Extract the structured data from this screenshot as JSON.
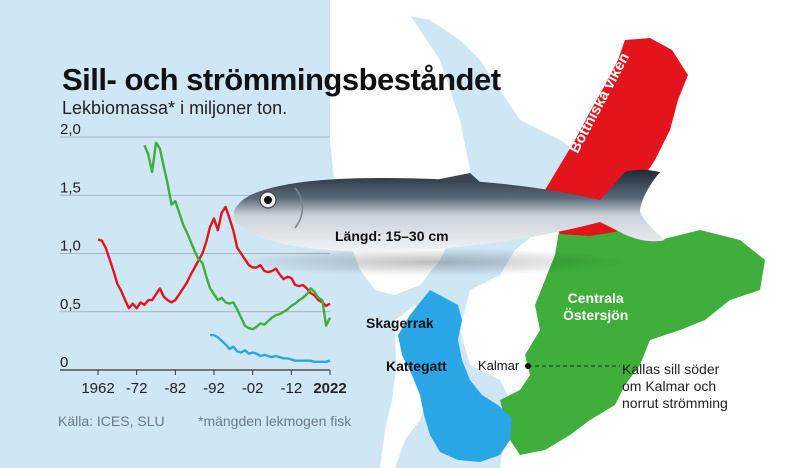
{
  "title": "Sill- och strömmingsbeståndet",
  "subtitle": "Lekbiomassa* i miljoner ton.",
  "source": "Källa: ICES, SLU",
  "footnote": "*mängden lekmogen fisk",
  "fish_label": "Längd: 15–30 cm",
  "map": {
    "bothnian_label": "Bottniska viken",
    "central_label": [
      "Centrala",
      "Östersjön"
    ],
    "skagerrak_label": "Skagerrak",
    "kattegatt_label": "Kattegatt",
    "kalmar_label": "Kalmar",
    "note_lines": [
      "Kallas sill söder",
      "om Kalmar och",
      "norrut strömming"
    ]
  },
  "colors": {
    "skagerrak_kattegatt": "#2aa6e6",
    "central_baltic": "#3fae3a",
    "bothnian_bay": "#e3141b",
    "land": "#ffffff",
    "sea": "#cfe6f5"
  },
  "chart_data": {
    "type": "line",
    "title": "Sill- och strömmingsbeståndet",
    "ylabel": "Lekbiomassa* i miljoner ton.",
    "xlabel": "",
    "xlim": [
      1962,
      2022
    ],
    "ylim": [
      0,
      2.0
    ],
    "y_ticks": [
      0,
      0.5,
      1.0,
      1.5,
      2.0
    ],
    "y_tick_labels": [
      "0",
      "0,5",
      "1,0",
      "1,5",
      "2,0"
    ],
    "x_ticks": [
      1962,
      1972,
      1982,
      1992,
      2002,
      2012,
      2022
    ],
    "x_tick_labels": [
      "1962",
      "-72",
      "-82",
      "-92",
      "-02",
      "-12",
      "2022"
    ],
    "grid": true,
    "series": [
      {
        "name": "Bottniska viken",
        "color": "#e3141b",
        "x": [
          1962,
          1963,
          1964,
          1965,
          1966,
          1967,
          1968,
          1969,
          1970,
          1971,
          1972,
          1973,
          1974,
          1975,
          1976,
          1977,
          1978,
          1979,
          1980,
          1981,
          1982,
          1983,
          1984,
          1985,
          1986,
          1987,
          1988,
          1989,
          1990,
          1991,
          1992,
          1993,
          1994,
          1995,
          1996,
          1997,
          1998,
          1999,
          2000,
          2001,
          2002,
          2003,
          2004,
          2005,
          2006,
          2007,
          2008,
          2009,
          2010,
          2011,
          2012,
          2013,
          2014,
          2015,
          2016,
          2017,
          2018,
          2019,
          2020,
          2021,
          2022
        ],
        "values": [
          1.12,
          1.11,
          1.05,
          0.95,
          0.85,
          0.74,
          0.68,
          0.6,
          0.53,
          0.57,
          0.53,
          0.58,
          0.56,
          0.6,
          0.6,
          0.65,
          0.7,
          0.63,
          0.6,
          0.58,
          0.6,
          0.65,
          0.7,
          0.75,
          0.82,
          0.88,
          0.94,
          1.0,
          1.1,
          1.23,
          1.3,
          1.2,
          1.35,
          1.4,
          1.3,
          1.2,
          1.05,
          1.0,
          0.95,
          0.9,
          0.88,
          0.88,
          0.9,
          0.85,
          0.84,
          0.85,
          0.87,
          0.82,
          0.78,
          0.8,
          0.79,
          0.73,
          0.72,
          0.73,
          0.7,
          0.66,
          0.64,
          0.6,
          0.58,
          0.55,
          0.57
        ]
      },
      {
        "name": "Centrala Östersjön",
        "color": "#3fae3a",
        "x": [
          1974,
          1975,
          1976,
          1977,
          1978,
          1979,
          1980,
          1981,
          1982,
          1983,
          1984,
          1985,
          1986,
          1987,
          1988,
          1989,
          1990,
          1991,
          1992,
          1993,
          1994,
          1995,
          1996,
          1997,
          1998,
          1999,
          2000,
          2001,
          2002,
          2003,
          2004,
          2005,
          2006,
          2007,
          2008,
          2009,
          2010,
          2011,
          2012,
          2013,
          2014,
          2015,
          2016,
          2017,
          2018,
          2019,
          2020,
          2021,
          2022
        ],
        "values": [
          1.93,
          1.85,
          1.7,
          1.95,
          1.9,
          1.75,
          1.6,
          1.42,
          1.45,
          1.35,
          1.25,
          1.18,
          1.1,
          1.02,
          0.95,
          0.92,
          0.8,
          0.7,
          0.65,
          0.6,
          0.62,
          0.58,
          0.57,
          0.58,
          0.52,
          0.45,
          0.38,
          0.36,
          0.35,
          0.37,
          0.4,
          0.39,
          0.42,
          0.45,
          0.47,
          0.48,
          0.5,
          0.52,
          0.55,
          0.57,
          0.6,
          0.62,
          0.65,
          0.7,
          0.67,
          0.62,
          0.6,
          0.38,
          0.45
        ]
      },
      {
        "name": "Skagerrak och Kattegatt",
        "color": "#2aa6e6",
        "x": [
          1991,
          1992,
          1993,
          1994,
          1995,
          1996,
          1997,
          1998,
          1999,
          2000,
          2001,
          2002,
          2003,
          2004,
          2005,
          2006,
          2007,
          2008,
          2009,
          2010,
          2011,
          2012,
          2013,
          2014,
          2015,
          2016,
          2017,
          2018,
          2019,
          2020,
          2021,
          2022
        ],
        "values": [
          0.3,
          0.3,
          0.28,
          0.25,
          0.22,
          0.18,
          0.2,
          0.16,
          0.15,
          0.17,
          0.14,
          0.15,
          0.14,
          0.12,
          0.13,
          0.12,
          0.11,
          0.12,
          0.11,
          0.1,
          0.1,
          0.09,
          0.08,
          0.08,
          0.08,
          0.08,
          0.08,
          0.07,
          0.07,
          0.07,
          0.07,
          0.08
        ]
      }
    ]
  }
}
